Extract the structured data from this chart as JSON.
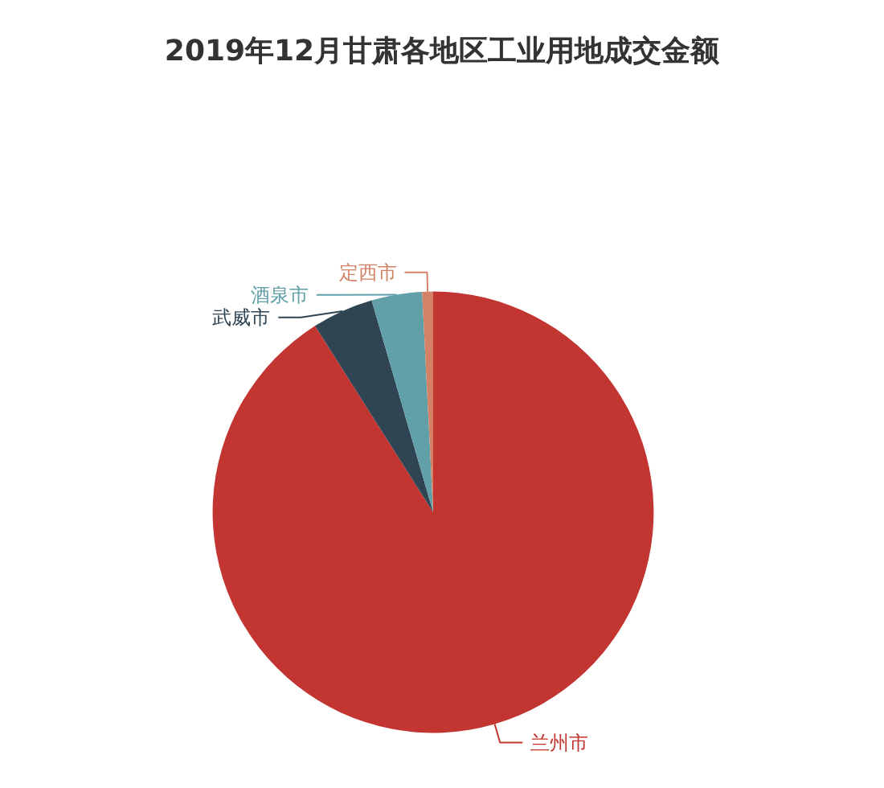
{
  "chart_data": {
    "type": "pie",
    "title": "2019年12月甘肃各地区工业用地成交金额",
    "categories": [
      "兰州市",
      "武威市",
      "酒泉市",
      "定西市"
    ],
    "values": [
      91.0,
      4.5,
      3.7,
      0.8
    ],
    "colors": [
      "#c23531",
      "#2f4554",
      "#61a0a8",
      "#d48265"
    ]
  }
}
